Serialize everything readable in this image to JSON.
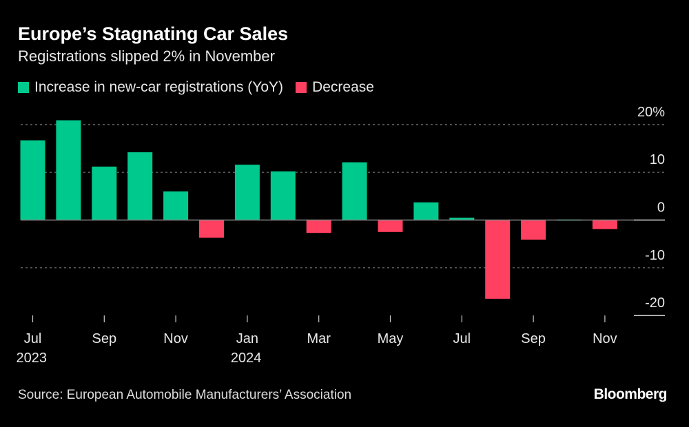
{
  "title": "Europe’s Stagnating Car Sales",
  "subtitle": "Registrations slipped 2% in November",
  "source": "Source: European Automobile Manufacturers’ Association",
  "logo": "Bloomberg",
  "colors": {
    "increase": "#00c98d",
    "decrease": "#ff4060",
    "background": "#000000"
  },
  "chart_data": {
    "type": "bar",
    "legend": [
      {
        "name": "Increase in new-car registrations (YoY)",
        "color": "#00c98d"
      },
      {
        "name": "Decrease",
        "color": "#ff4060"
      }
    ],
    "legend_position": "top-left",
    "categories": [
      "Jul 2023",
      "Aug 2023",
      "Sep 2023",
      "Oct 2023",
      "Nov 2023",
      "Dec 2023",
      "Jan 2024",
      "Feb 2024",
      "Mar 2024",
      "Apr 2024",
      "May 2024",
      "Jun 2024",
      "Jul 2024",
      "Aug 2024",
      "Sep 2024",
      "Oct 2024",
      "Nov 2024"
    ],
    "values": [
      16.7,
      20.9,
      11.2,
      14.2,
      6.0,
      -3.7,
      11.6,
      10.2,
      -2.7,
      12.1,
      -2.5,
      3.7,
      0.5,
      -16.5,
      -4.1,
      0.1,
      -1.9
    ],
    "x_tick_labels": [
      {
        "index": 0,
        "line1": "Jul",
        "line2": "2023"
      },
      {
        "index": 2,
        "line1": "Sep",
        "line2": ""
      },
      {
        "index": 4,
        "line1": "Nov",
        "line2": ""
      },
      {
        "index": 6,
        "line1": "Jan",
        "line2": "2024"
      },
      {
        "index": 8,
        "line1": "Mar",
        "line2": ""
      },
      {
        "index": 10,
        "line1": "May",
        "line2": ""
      },
      {
        "index": 12,
        "line1": "Jul",
        "line2": ""
      },
      {
        "index": 14,
        "line1": "Sep",
        "line2": ""
      },
      {
        "index": 16,
        "line1": "Nov",
        "line2": ""
      }
    ],
    "y_ticks": [
      {
        "value": 20,
        "label": "20%"
      },
      {
        "value": 10,
        "label": "10"
      },
      {
        "value": 0,
        "label": "0"
      },
      {
        "value": -10,
        "label": "-10"
      },
      {
        "value": -20,
        "label": "-20"
      }
    ],
    "ylim": [
      -20,
      20
    ],
    "y_axis_side": "right",
    "grid": true
  }
}
